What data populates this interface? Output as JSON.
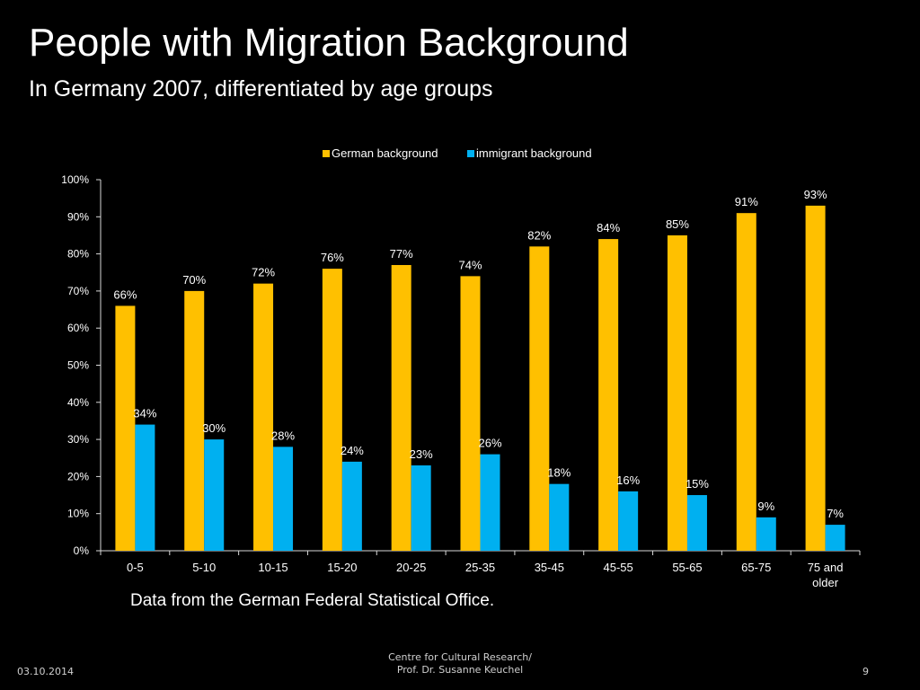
{
  "slide": {
    "title": "People with Migration Background",
    "subtitle": "In Germany 2007, differentiated by age groups",
    "note": "Data from the German Federal Statistical Office.",
    "footer": {
      "date": "03.10.2014",
      "center_line1": "Centre for Cultural Research/",
      "center_line2": "Prof. Dr. Susanne Keuchel",
      "page": "9"
    }
  },
  "chart_data": {
    "type": "bar",
    "categories": [
      "0-5",
      "5-10",
      "10-15",
      "15-20",
      "20-25",
      "25-35",
      "35-45",
      "45-55",
      "55-65",
      "65-75",
      "75 and older"
    ],
    "series": [
      {
        "name": "German background",
        "color": "#ffc000",
        "values": [
          66,
          70,
          72,
          76,
          77,
          74,
          82,
          84,
          85,
          91,
          93
        ]
      },
      {
        "name": "immigrant background",
        "color": "#00b0f0",
        "values": [
          34,
          30,
          28,
          24,
          23,
          26,
          18,
          16,
          15,
          9,
          7
        ]
      }
    ],
    "ylim": [
      0,
      100
    ],
    "yticks": [
      "0%",
      "10%",
      "20%",
      "30%",
      "40%",
      "50%",
      "60%",
      "70%",
      "80%",
      "90%",
      "100%"
    ],
    "value_suffix": "%",
    "legend_position": "top-center",
    "grid": false
  }
}
